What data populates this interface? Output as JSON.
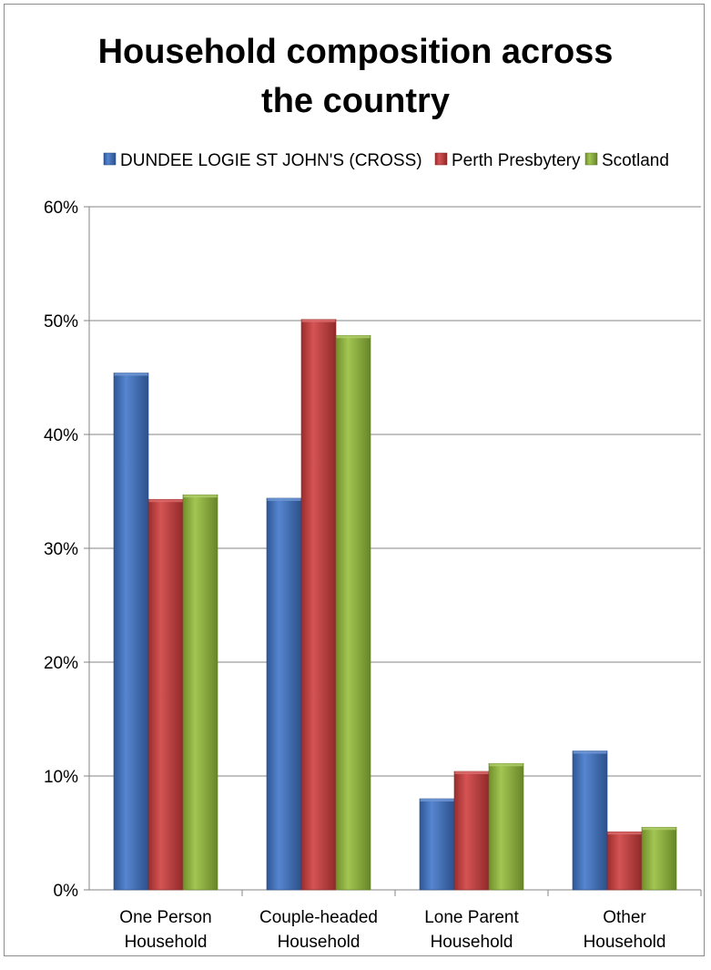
{
  "chart_data": {
    "type": "bar",
    "title_lines": [
      "Household composition across",
      "the country"
    ],
    "categories": [
      [
        "One Person",
        "Household"
      ],
      [
        "Couple-headed",
        "Household"
      ],
      [
        "Lone Parent",
        "Household"
      ],
      [
        "Other",
        "Household"
      ]
    ],
    "series": [
      {
        "name": "DUNDEE LOGIE ST JOHN'S (CROSS)",
        "color": "#3f74c8",
        "values": [
          45.4,
          34.4,
          8.0,
          12.2
        ]
      },
      {
        "name": "Perth Presbytery",
        "color": "#cf3c3c",
        "values": [
          34.3,
          50.1,
          10.4,
          5.1
        ]
      },
      {
        "name": "Scotland",
        "color": "#95be3a",
        "values": [
          34.7,
          48.7,
          11.1,
          5.5
        ]
      }
    ],
    "ylim": [
      0,
      60
    ],
    "yticks": [
      "0%",
      "10%",
      "20%",
      "30%",
      "40%",
      "50%",
      "60%"
    ],
    "legend_position": "top",
    "grid": true
  }
}
